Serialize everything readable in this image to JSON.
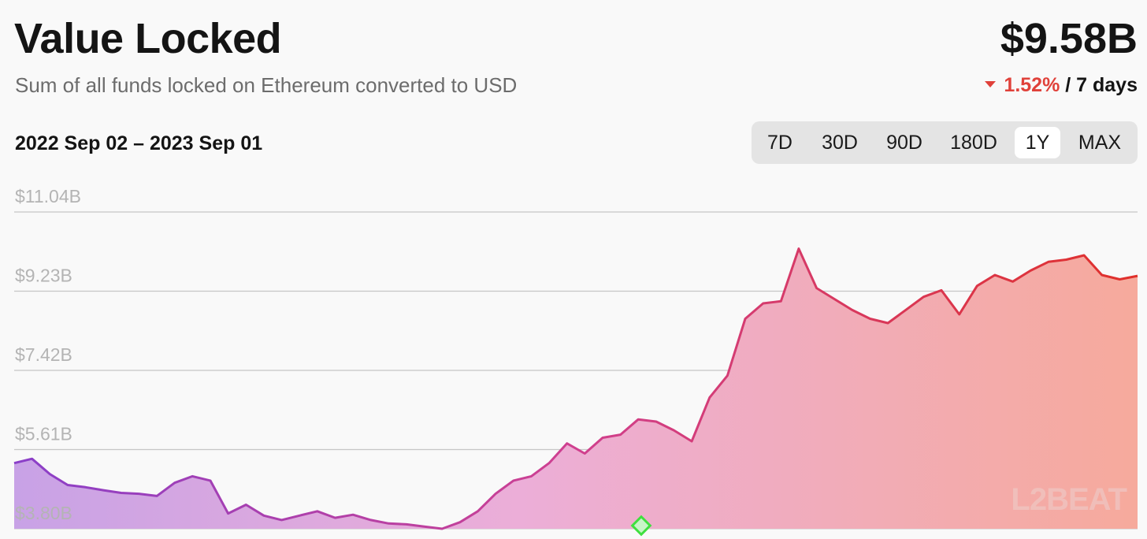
{
  "header": {
    "title": "Value Locked",
    "subtitle": "Sum of all funds locked on Ethereum converted to USD",
    "value": "$9.58B",
    "change_pct": "1.52%",
    "change_period": "/ 7 days"
  },
  "date_range": "2022 Sep 02 – 2023 Sep 01",
  "tabs": [
    {
      "label": "7D",
      "active": false
    },
    {
      "label": "30D",
      "active": false
    },
    {
      "label": "90D",
      "active": false
    },
    {
      "label": "180D",
      "active": false
    },
    {
      "label": "1Y",
      "active": true
    },
    {
      "label": "MAX",
      "active": false
    }
  ],
  "watermark": "L2BEAT",
  "colors": {
    "line_start": "#8a3fc9",
    "line_mid": "#d0408f",
    "line_end": "#e0302a",
    "negative": "#e0413a",
    "marker": "#3fe03f"
  },
  "chart_data": {
    "type": "area",
    "title": "",
    "xlabel": "",
    "ylabel": "",
    "x_range": [
      "2022-09-02",
      "2023-09-01"
    ],
    "ylim": [
      3.8,
      11.04
    ],
    "y_ticks": [
      "$11.04B",
      "$9.23B",
      "$7.42B",
      "$5.61B",
      "$3.80B"
    ],
    "y_tick_values": [
      11.04,
      9.23,
      7.42,
      5.61,
      3.8
    ],
    "grid": true,
    "series": [
      {
        "values": [
          5.3,
          5.4,
          5.05,
          4.8,
          4.75,
          4.68,
          4.62,
          4.6,
          4.55,
          4.85,
          5.0,
          4.9,
          4.15,
          4.35,
          4.1,
          4.0,
          4.1,
          4.2,
          4.05,
          4.12,
          4.0,
          3.92,
          3.9,
          3.85,
          3.8,
          3.95,
          4.2,
          4.6,
          4.9,
          5.0,
          5.3,
          5.75,
          5.52,
          5.88,
          5.95,
          6.3,
          6.25,
          6.05,
          5.8,
          6.8,
          7.3,
          8.6,
          8.95,
          9.0,
          10.2,
          9.3,
          9.05,
          8.8,
          8.6,
          8.5,
          8.8,
          9.1,
          9.25,
          8.7,
          9.35,
          9.6,
          9.45,
          9.7,
          9.9,
          9.95,
          10.05,
          9.6,
          9.5,
          9.58
        ]
      }
    ]
  }
}
